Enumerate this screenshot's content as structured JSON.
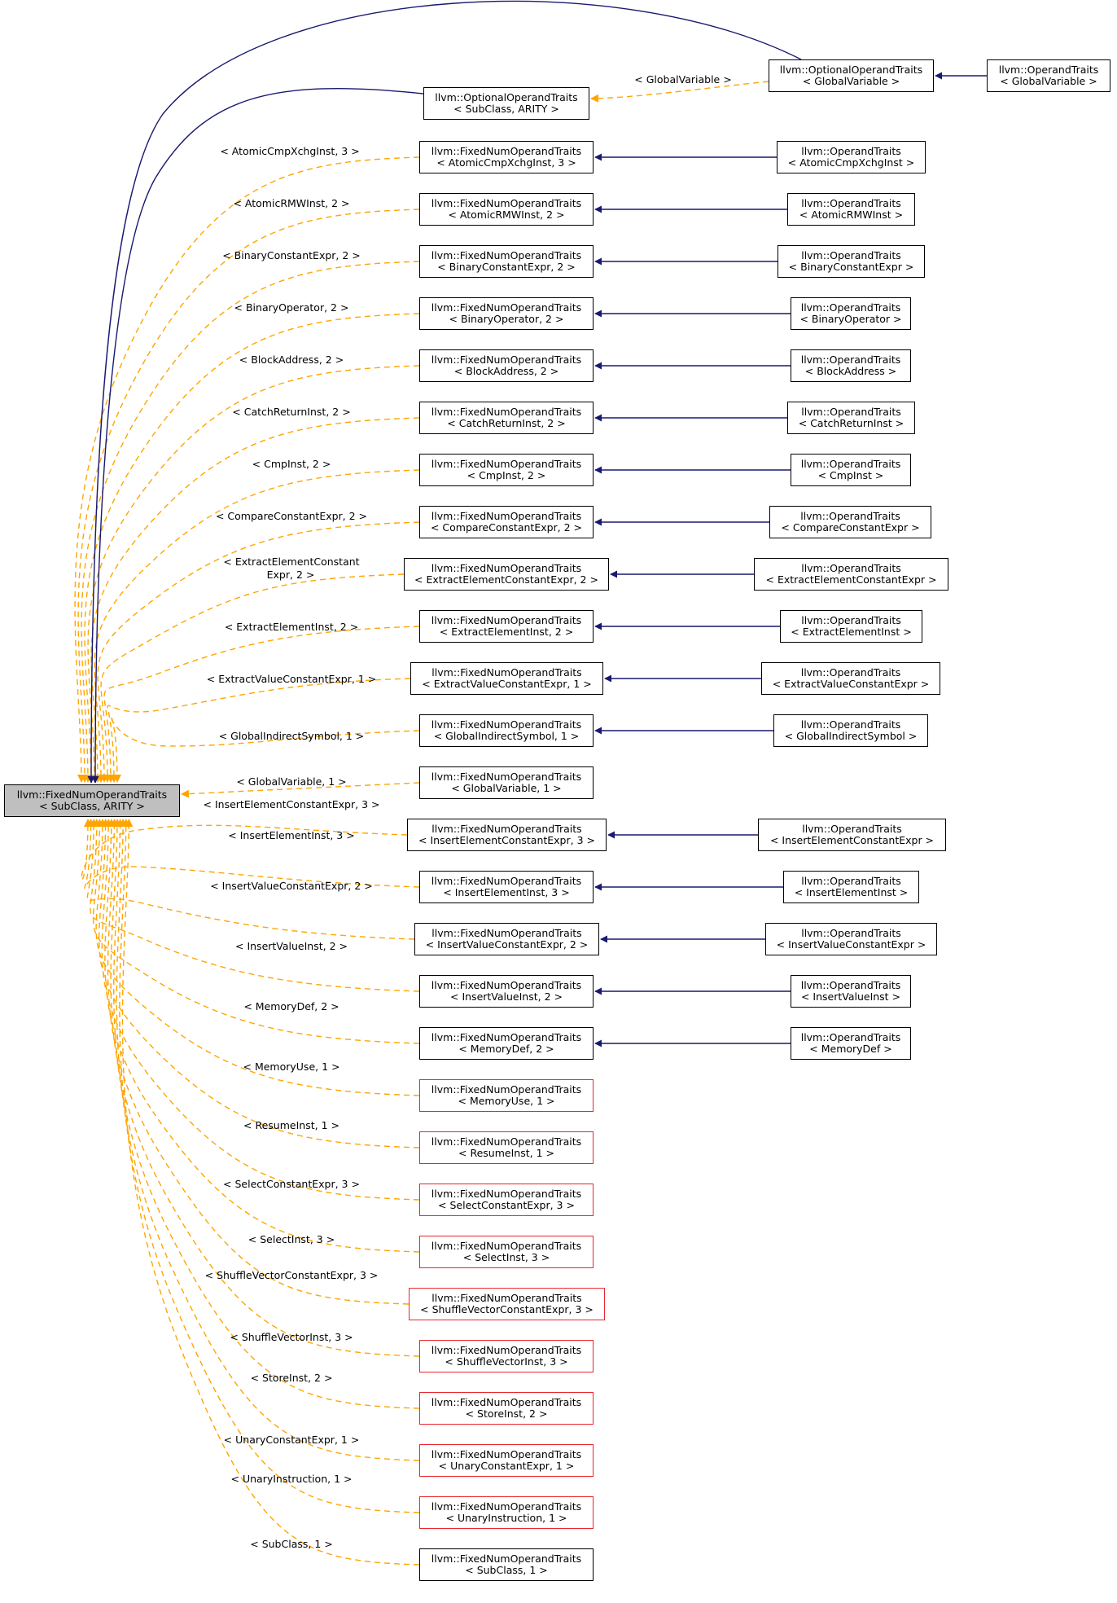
{
  "colors": {
    "inherit_edge": "#191970",
    "template_edge": "#ffa500",
    "node_border": "#000000",
    "undocumented_border": "#e8262d",
    "root_fill": "#bfbfbf"
  },
  "root": {
    "id": "root",
    "line1": "llvm::FixedNumOperandTraits",
    "line2": "< SubClass, ARITY >"
  },
  "nodes": [
    {
      "id": "opt_gv",
      "line1": "llvm::OptionalOperandTraits",
      "line2": "< GlobalVariable >"
    },
    {
      "id": "ot_gv",
      "line1": "llvm::OperandTraits",
      "line2": "< GlobalVariable >"
    },
    {
      "id": "opt_sub",
      "line1": "llvm::OptionalOperandTraits",
      "line2": "< SubClass, ARITY >"
    },
    {
      "id": "f_acx",
      "line1": "llvm::FixedNumOperandTraits",
      "line2": "< AtomicCmpXchgInst, 3 >"
    },
    {
      "id": "o_acx",
      "line1": "llvm::OperandTraits",
      "line2": "< AtomicCmpXchgInst >"
    },
    {
      "id": "f_rmw",
      "line1": "llvm::FixedNumOperandTraits",
      "line2": "< AtomicRMWInst, 2 >"
    },
    {
      "id": "o_rmw",
      "line1": "llvm::OperandTraits",
      "line2": "< AtomicRMWInst >"
    },
    {
      "id": "f_bce",
      "line1": "llvm::FixedNumOperandTraits",
      "line2": "< BinaryConstantExpr, 2 >"
    },
    {
      "id": "o_bce",
      "line1": "llvm::OperandTraits",
      "line2": "< BinaryConstantExpr >"
    },
    {
      "id": "f_bop",
      "line1": "llvm::FixedNumOperandTraits",
      "line2": "< BinaryOperator, 2 >"
    },
    {
      "id": "o_bop",
      "line1": "llvm::OperandTraits",
      "line2": "< BinaryOperator >"
    },
    {
      "id": "f_ba",
      "line1": "llvm::FixedNumOperandTraits",
      "line2": "< BlockAddress, 2 >"
    },
    {
      "id": "o_ba",
      "line1": "llvm::OperandTraits",
      "line2": "< BlockAddress >"
    },
    {
      "id": "f_cri",
      "line1": "llvm::FixedNumOperandTraits",
      "line2": "< CatchReturnInst, 2 >"
    },
    {
      "id": "o_cri",
      "line1": "llvm::OperandTraits",
      "line2": "< CatchReturnInst >"
    },
    {
      "id": "f_cmp",
      "line1": "llvm::FixedNumOperandTraits",
      "line2": "< CmpInst, 2 >"
    },
    {
      "id": "o_cmp",
      "line1": "llvm::OperandTraits",
      "line2": "< CmpInst >"
    },
    {
      "id": "f_cce",
      "line1": "llvm::FixedNumOperandTraits",
      "line2": "< CompareConstantExpr, 2 >"
    },
    {
      "id": "o_cce",
      "line1": "llvm::OperandTraits",
      "line2": "< CompareConstantExpr >"
    },
    {
      "id": "f_eece",
      "line1": "llvm::FixedNumOperandTraits",
      "line2": "< ExtractElementConstantExpr, 2 >"
    },
    {
      "id": "o_eece",
      "line1": "llvm::OperandTraits",
      "line2": "< ExtractElementConstantExpr >"
    },
    {
      "id": "f_eei",
      "line1": "llvm::FixedNumOperandTraits",
      "line2": "< ExtractElementInst, 2 >"
    },
    {
      "id": "o_eei",
      "line1": "llvm::OperandTraits",
      "line2": "< ExtractElementInst >"
    },
    {
      "id": "f_evce",
      "line1": "llvm::FixedNumOperandTraits",
      "line2": "< ExtractValueConstantExpr, 1 >"
    },
    {
      "id": "o_evce",
      "line1": "llvm::OperandTraits",
      "line2": "< ExtractValueConstantExpr >"
    },
    {
      "id": "f_gis",
      "line1": "llvm::FixedNumOperandTraits",
      "line2": "< GlobalIndirectSymbol, 1 >"
    },
    {
      "id": "o_gis",
      "line1": "llvm::OperandTraits",
      "line2": "< GlobalIndirectSymbol >"
    },
    {
      "id": "f_gv",
      "line1": "llvm::FixedNumOperandTraits",
      "line2": "< GlobalVariable, 1 >"
    },
    {
      "id": "f_iece",
      "line1": "llvm::FixedNumOperandTraits",
      "line2": "< InsertElementConstantExpr, 3 >"
    },
    {
      "id": "o_iece",
      "line1": "llvm::OperandTraits",
      "line2": "< InsertElementConstantExpr >"
    },
    {
      "id": "f_iei",
      "line1": "llvm::FixedNumOperandTraits",
      "line2": "< InsertElementInst, 3 >"
    },
    {
      "id": "o_iei",
      "line1": "llvm::OperandTraits",
      "line2": "< InsertElementInst >"
    },
    {
      "id": "f_ivce",
      "line1": "llvm::FixedNumOperandTraits",
      "line2": "< InsertValueConstantExpr, 2 >"
    },
    {
      "id": "o_ivce",
      "line1": "llvm::OperandTraits",
      "line2": "< InsertValueConstantExpr >"
    },
    {
      "id": "f_ivi",
      "line1": "llvm::FixedNumOperandTraits",
      "line2": "< InsertValueInst, 2 >"
    },
    {
      "id": "o_ivi",
      "line1": "llvm::OperandTraits",
      "line2": "< InsertValueInst >"
    },
    {
      "id": "f_mdef",
      "line1": "llvm::FixedNumOperandTraits",
      "line2": "< MemoryDef, 2 >"
    },
    {
      "id": "o_mdef",
      "line1": "llvm::OperandTraits",
      "line2": "< MemoryDef >"
    },
    {
      "id": "f_muse",
      "line1": "llvm::FixedNumOperandTraits",
      "line2": "< MemoryUse, 1 >",
      "undocumented": true
    },
    {
      "id": "f_res",
      "line1": "llvm::FixedNumOperandTraits",
      "line2": "< ResumeInst, 1 >",
      "undocumented": true
    },
    {
      "id": "f_sce",
      "line1": "llvm::FixedNumOperandTraits",
      "line2": "< SelectConstantExpr, 3 >",
      "undocumented": true
    },
    {
      "id": "f_sel",
      "line1": "llvm::FixedNumOperandTraits",
      "line2": "< SelectInst, 3 >",
      "undocumented": true
    },
    {
      "id": "f_svce",
      "line1": "llvm::FixedNumOperandTraits",
      "line2": "< ShuffleVectorConstantExpr, 3 >",
      "undocumented": true
    },
    {
      "id": "f_svi",
      "line1": "llvm::FixedNumOperandTraits",
      "line2": "< ShuffleVectorInst, 3 >",
      "undocumented": true
    },
    {
      "id": "f_st",
      "line1": "llvm::FixedNumOperandTraits",
      "line2": "< StoreInst, 2 >",
      "undocumented": true
    },
    {
      "id": "f_uce",
      "line1": "llvm::FixedNumOperandTraits",
      "line2": "< UnaryConstantExpr, 1 >",
      "undocumented": true
    },
    {
      "id": "f_ui",
      "line1": "llvm::FixedNumOperandTraits",
      "line2": "< UnaryInstruction, 1 >",
      "undocumented": true
    },
    {
      "id": "f_sub",
      "line1": "llvm::FixedNumOperandTraits",
      "line2": "< SubClass, 1 >"
    }
  ],
  "edge_labels": {
    "opt_gv": "< GlobalVariable >",
    "f_acx": "< AtomicCmpXchgInst, 3 >",
    "f_rmw": "< AtomicRMWInst, 2 >",
    "f_bce": "< BinaryConstantExpr, 2 >",
    "f_bop": "< BinaryOperator, 2 >",
    "f_ba": "< BlockAddress, 2 >",
    "f_cri": "< CatchReturnInst, 2 >",
    "f_cmp": "< CmpInst, 2 >",
    "f_cce": "< CompareConstantExpr, 2 >",
    "f_eece_1": "< ExtractElementConstant",
    "f_eece_2": "Expr, 2 >",
    "f_eei": "< ExtractElementInst, 2 >",
    "f_evce": "< ExtractValueConstantExpr, 1 >",
    "f_gis": "< GlobalIndirectSymbol, 1 >",
    "f_gv": "< GlobalVariable, 1 >",
    "f_iece": "< InsertElementConstantExpr, 3 >",
    "f_iei": "< InsertElementInst, 3 >",
    "f_ivce": "< InsertValueConstantExpr, 2 >",
    "f_ivi": "< InsertValueInst, 2 >",
    "f_mdef": "< MemoryDef, 2 >",
    "f_muse": "< MemoryUse, 1 >",
    "f_res": "< ResumeInst, 1 >",
    "f_sce": "< SelectConstantExpr, 3 >",
    "f_sel": "< SelectInst, 3 >",
    "f_svce": "< ShuffleVectorConstantExpr, 3 >",
    "f_svi": "< ShuffleVectorInst, 3 >",
    "f_st": "< StoreInst, 2 >",
    "f_uce": "< UnaryConstantExpr, 1 >",
    "f_ui": "< UnaryInstruction, 1 >",
    "f_sub": "< SubClass, 1 >"
  }
}
